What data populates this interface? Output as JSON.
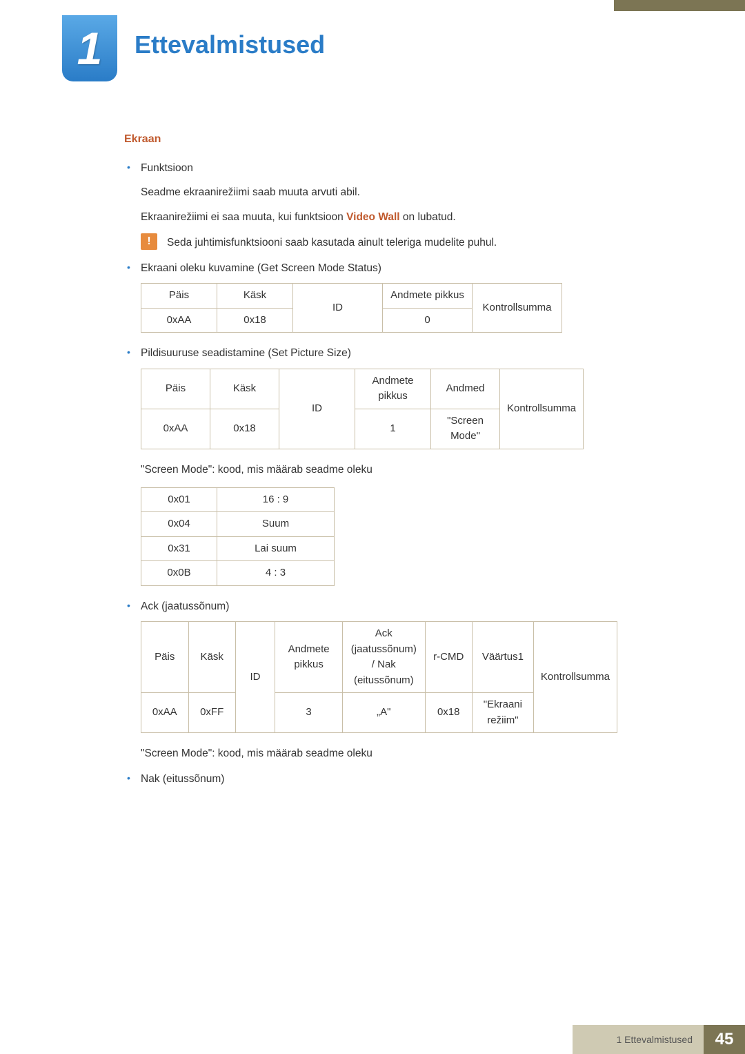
{
  "chapter": {
    "number": "1",
    "title": "Ettevalmistused"
  },
  "section": {
    "heading": "Ekraan"
  },
  "body": {
    "b1_label": "Funktsioon",
    "p1": "Seadme ekraanirežiimi saab muuta arvuti abil.",
    "p2_pre": "Ekraanirežiimi ei saa muuta, kui funktsioon ",
    "p2_hl": "Video Wall",
    "p2_post": " on lubatud.",
    "info": "Seda juhtimisfunktsiooni saab kasutada ainult teleriga mudelite puhul.",
    "b2": "Ekraani oleku kuvamine (Get Screen Mode Status)",
    "b3": "Pildisuuruse seadistamine (Set Picture Size)",
    "note1": "\"Screen Mode\": kood, mis määrab seadme oleku",
    "b4": "Ack (jaatussõnum)",
    "note2": "\"Screen Mode\": kood, mis määrab seadme oleku",
    "b5": "Nak (eitussõnum)"
  },
  "table1": {
    "cols": [
      "Päis",
      "Käsk",
      "ID",
      "Andmete pikkus",
      "Kontrollsumma"
    ],
    "row": [
      "0xAA",
      "0x18",
      "",
      "0",
      ""
    ],
    "widths": [
      110,
      110,
      130,
      130,
      130
    ]
  },
  "table2": {
    "cols": [
      "Päis",
      "Käsk",
      "ID",
      "Andmete pikkus",
      "Andmed",
      "Kontrollsumma"
    ],
    "row": [
      "0xAA",
      "0x18",
      "",
      "1",
      "\"Screen Mode\"",
      ""
    ],
    "widths": [
      100,
      100,
      110,
      110,
      100,
      110
    ]
  },
  "table3": {
    "rows": [
      [
        "0x01",
        "16 : 9"
      ],
      [
        "0x04",
        "Suum"
      ],
      [
        "0x31",
        "Lai suum"
      ],
      [
        "0x0B",
        "4 : 3"
      ]
    ],
    "widths": [
      110,
      170
    ]
  },
  "table4": {
    "cols": [
      "Päis",
      "Käsk",
      "ID",
      "Andmete pikkus",
      "Ack (jaatussõnum) / Nak (eitussõnum)",
      "r-CMD",
      "Väärtus1",
      "Kontrollsumma"
    ],
    "row": [
      "0xAA",
      "0xFF",
      "",
      "3",
      "„A\"",
      "0x18",
      "\"Ekraani režiim\"",
      ""
    ],
    "widths": [
      70,
      70,
      60,
      100,
      120,
      70,
      90,
      90
    ]
  },
  "footer": {
    "label": "1 Ettevalmistused",
    "page": "45"
  },
  "colors": {
    "accent_blue": "#2a7cc7",
    "accent_orange": "#c05a2e",
    "info_bg": "#e78b3d",
    "border": "#c9bfa8",
    "footer_light": "#cfcab3",
    "footer_dark": "#7c7554"
  }
}
